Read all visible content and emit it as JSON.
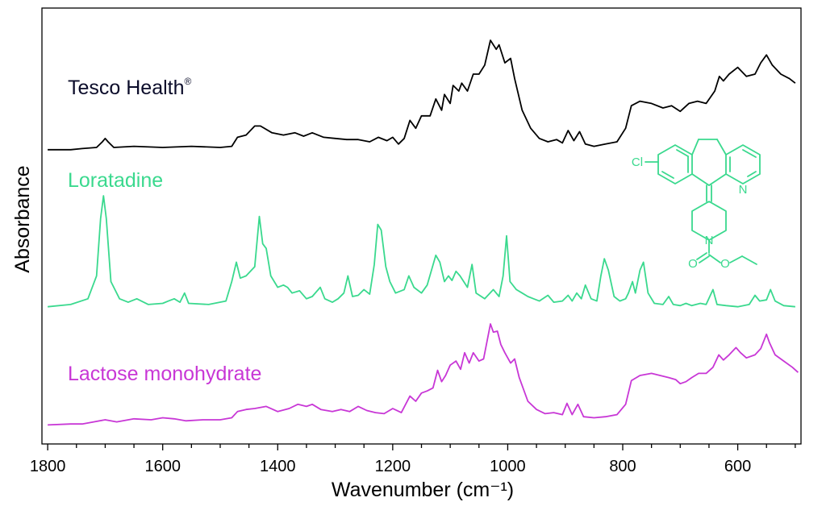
{
  "chart_data": {
    "type": "line",
    "xlabel": "Wavenumber (cm⁻¹)",
    "ylabel": "Absorbance",
    "xlim": [
      1810,
      490
    ],
    "x_reversed": true,
    "x_ticks": [
      1800,
      1600,
      1400,
      1200,
      1000,
      800,
      600
    ],
    "y_ticks": [],
    "grid": false,
    "series": [
      {
        "name": "Tesco Health",
        "name_superscript": "®",
        "color": "#000000",
        "points": [
          [
            1800,
            0.03
          ],
          [
            1760,
            0.03
          ],
          [
            1740,
            0.04
          ],
          [
            1715,
            0.05
          ],
          [
            1705,
            0.1
          ],
          [
            1700,
            0.13
          ],
          [
            1695,
            0.1
          ],
          [
            1685,
            0.05
          ],
          [
            1650,
            0.06
          ],
          [
            1600,
            0.05
          ],
          [
            1550,
            0.06
          ],
          [
            1500,
            0.05
          ],
          [
            1480,
            0.06
          ],
          [
            1470,
            0.14
          ],
          [
            1455,
            0.16
          ],
          [
            1440,
            0.24
          ],
          [
            1430,
            0.24
          ],
          [
            1410,
            0.18
          ],
          [
            1390,
            0.16
          ],
          [
            1370,
            0.18
          ],
          [
            1355,
            0.15
          ],
          [
            1340,
            0.18
          ],
          [
            1320,
            0.14
          ],
          [
            1300,
            0.13
          ],
          [
            1280,
            0.12
          ],
          [
            1260,
            0.12
          ],
          [
            1240,
            0.1
          ],
          [
            1225,
            0.14
          ],
          [
            1210,
            0.11
          ],
          [
            1200,
            0.14
          ],
          [
            1190,
            0.08
          ],
          [
            1180,
            0.13
          ],
          [
            1170,
            0.29
          ],
          [
            1160,
            0.22
          ],
          [
            1150,
            0.33
          ],
          [
            1135,
            0.33
          ],
          [
            1125,
            0.48
          ],
          [
            1115,
            0.38
          ],
          [
            1110,
            0.52
          ],
          [
            1100,
            0.44
          ],
          [
            1095,
            0.6
          ],
          [
            1085,
            0.55
          ],
          [
            1080,
            0.62
          ],
          [
            1070,
            0.55
          ],
          [
            1060,
            0.7
          ],
          [
            1050,
            0.7
          ],
          [
            1040,
            0.78
          ],
          [
            1030,
            1.0
          ],
          [
            1020,
            0.92
          ],
          [
            1015,
            0.96
          ],
          [
            1005,
            0.8
          ],
          [
            995,
            0.84
          ],
          [
            988,
            0.66
          ],
          [
            975,
            0.38
          ],
          [
            960,
            0.22
          ],
          [
            945,
            0.13
          ],
          [
            930,
            0.1
          ],
          [
            915,
            0.12
          ],
          [
            905,
            0.09
          ],
          [
            895,
            0.2
          ],
          [
            885,
            0.11
          ],
          [
            875,
            0.19
          ],
          [
            865,
            0.08
          ],
          [
            850,
            0.06
          ],
          [
            830,
            0.08
          ],
          [
            810,
            0.1
          ],
          [
            795,
            0.22
          ],
          [
            785,
            0.42
          ],
          [
            770,
            0.46
          ],
          [
            750,
            0.44
          ],
          [
            730,
            0.4
          ],
          [
            715,
            0.42
          ],
          [
            700,
            0.37
          ],
          [
            685,
            0.44
          ],
          [
            670,
            0.46
          ],
          [
            655,
            0.44
          ],
          [
            640,
            0.55
          ],
          [
            632,
            0.68
          ],
          [
            625,
            0.64
          ],
          [
            615,
            0.7
          ],
          [
            600,
            0.76
          ],
          [
            585,
            0.68
          ],
          [
            570,
            0.7
          ],
          [
            560,
            0.8
          ],
          [
            550,
            0.87
          ],
          [
            540,
            0.78
          ],
          [
            525,
            0.7
          ],
          [
            510,
            0.66
          ],
          [
            500,
            0.62
          ]
        ]
      },
      {
        "name": "Loratadine",
        "color": "#3ad98e",
        "points": [
          [
            1800,
            0.03
          ],
          [
            1760,
            0.05
          ],
          [
            1730,
            0.1
          ],
          [
            1715,
            0.3
          ],
          [
            1708,
            0.8
          ],
          [
            1703,
            1.0
          ],
          [
            1698,
            0.8
          ],
          [
            1690,
            0.25
          ],
          [
            1675,
            0.1
          ],
          [
            1660,
            0.07
          ],
          [
            1645,
            0.1
          ],
          [
            1625,
            0.05
          ],
          [
            1600,
            0.06
          ],
          [
            1590,
            0.08
          ],
          [
            1580,
            0.1
          ],
          [
            1570,
            0.07
          ],
          [
            1562,
            0.15
          ],
          [
            1555,
            0.06
          ],
          [
            1520,
            0.05
          ],
          [
            1490,
            0.08
          ],
          [
            1480,
            0.25
          ],
          [
            1472,
            0.42
          ],
          [
            1465,
            0.28
          ],
          [
            1455,
            0.3
          ],
          [
            1440,
            0.38
          ],
          [
            1432,
            0.82
          ],
          [
            1426,
            0.58
          ],
          [
            1420,
            0.54
          ],
          [
            1412,
            0.3
          ],
          [
            1400,
            0.2
          ],
          [
            1390,
            0.22
          ],
          [
            1383,
            0.2
          ],
          [
            1375,
            0.15
          ],
          [
            1362,
            0.17
          ],
          [
            1350,
            0.1
          ],
          [
            1340,
            0.12
          ],
          [
            1326,
            0.2
          ],
          [
            1318,
            0.1
          ],
          [
            1305,
            0.07
          ],
          [
            1295,
            0.1
          ],
          [
            1285,
            0.15
          ],
          [
            1278,
            0.3
          ],
          [
            1270,
            0.12
          ],
          [
            1260,
            0.13
          ],
          [
            1250,
            0.18
          ],
          [
            1240,
            0.14
          ],
          [
            1232,
            0.4
          ],
          [
            1226,
            0.75
          ],
          [
            1220,
            0.7
          ],
          [
            1212,
            0.38
          ],
          [
            1205,
            0.25
          ],
          [
            1195,
            0.15
          ],
          [
            1180,
            0.18
          ],
          [
            1172,
            0.3
          ],
          [
            1163,
            0.2
          ],
          [
            1150,
            0.15
          ],
          [
            1140,
            0.22
          ],
          [
            1125,
            0.48
          ],
          [
            1118,
            0.42
          ],
          [
            1110,
            0.25
          ],
          [
            1103,
            0.3
          ],
          [
            1097,
            0.26
          ],
          [
            1090,
            0.34
          ],
          [
            1083,
            0.3
          ],
          [
            1070,
            0.2
          ],
          [
            1062,
            0.4
          ],
          [
            1055,
            0.15
          ],
          [
            1040,
            0.1
          ],
          [
            1025,
            0.18
          ],
          [
            1015,
            0.12
          ],
          [
            1008,
            0.3
          ],
          [
            1002,
            0.65
          ],
          [
            996,
            0.25
          ],
          [
            985,
            0.18
          ],
          [
            975,
            0.15
          ],
          [
            965,
            0.12
          ],
          [
            955,
            0.1
          ],
          [
            945,
            0.08
          ],
          [
            930,
            0.13
          ],
          [
            920,
            0.07
          ],
          [
            905,
            0.08
          ],
          [
            895,
            0.13
          ],
          [
            888,
            0.08
          ],
          [
            880,
            0.15
          ],
          [
            872,
            0.1
          ],
          [
            865,
            0.22
          ],
          [
            855,
            0.1
          ],
          [
            845,
            0.08
          ],
          [
            838,
            0.3
          ],
          [
            832,
            0.45
          ],
          [
            825,
            0.35
          ],
          [
            815,
            0.12
          ],
          [
            805,
            0.08
          ],
          [
            795,
            0.1
          ],
          [
            790,
            0.15
          ],
          [
            783,
            0.25
          ],
          [
            778,
            0.15
          ],
          [
            770,
            0.35
          ],
          [
            764,
            0.42
          ],
          [
            756,
            0.15
          ],
          [
            745,
            0.06
          ],
          [
            730,
            0.05
          ],
          [
            720,
            0.12
          ],
          [
            712,
            0.05
          ],
          [
            700,
            0.04
          ],
          [
            690,
            0.06
          ],
          [
            680,
            0.04
          ],
          [
            665,
            0.06
          ],
          [
            655,
            0.05
          ],
          [
            643,
            0.18
          ],
          [
            636,
            0.05
          ],
          [
            620,
            0.04
          ],
          [
            600,
            0.03
          ],
          [
            580,
            0.05
          ],
          [
            570,
            0.13
          ],
          [
            562,
            0.08
          ],
          [
            550,
            0.09
          ],
          [
            543,
            0.18
          ],
          [
            535,
            0.08
          ],
          [
            520,
            0.04
          ],
          [
            500,
            0.03
          ]
        ]
      },
      {
        "name": "Lactose monohydrate",
        "color": "#c837d6",
        "points": [
          [
            1800,
            0.02
          ],
          [
            1760,
            0.03
          ],
          [
            1740,
            0.03
          ],
          [
            1720,
            0.05
          ],
          [
            1700,
            0.07
          ],
          [
            1680,
            0.05
          ],
          [
            1650,
            0.08
          ],
          [
            1620,
            0.07
          ],
          [
            1600,
            0.09
          ],
          [
            1580,
            0.08
          ],
          [
            1560,
            0.06
          ],
          [
            1530,
            0.07
          ],
          [
            1500,
            0.07
          ],
          [
            1480,
            0.09
          ],
          [
            1470,
            0.15
          ],
          [
            1455,
            0.17
          ],
          [
            1440,
            0.18
          ],
          [
            1420,
            0.2
          ],
          [
            1400,
            0.15
          ],
          [
            1380,
            0.18
          ],
          [
            1365,
            0.22
          ],
          [
            1350,
            0.2
          ],
          [
            1340,
            0.22
          ],
          [
            1325,
            0.17
          ],
          [
            1305,
            0.15
          ],
          [
            1290,
            0.17
          ],
          [
            1275,
            0.15
          ],
          [
            1260,
            0.2
          ],
          [
            1245,
            0.16
          ],
          [
            1230,
            0.14
          ],
          [
            1215,
            0.13
          ],
          [
            1200,
            0.18
          ],
          [
            1185,
            0.14
          ],
          [
            1170,
            0.3
          ],
          [
            1160,
            0.25
          ],
          [
            1150,
            0.33
          ],
          [
            1140,
            0.35
          ],
          [
            1130,
            0.38
          ],
          [
            1122,
            0.55
          ],
          [
            1115,
            0.44
          ],
          [
            1108,
            0.5
          ],
          [
            1100,
            0.6
          ],
          [
            1090,
            0.64
          ],
          [
            1082,
            0.56
          ],
          [
            1075,
            0.72
          ],
          [
            1067,
            0.62
          ],
          [
            1060,
            0.72
          ],
          [
            1050,
            0.64
          ],
          [
            1042,
            0.66
          ],
          [
            1030,
            1.0
          ],
          [
            1025,
            0.92
          ],
          [
            1018,
            0.93
          ],
          [
            1012,
            0.8
          ],
          [
            1005,
            0.72
          ],
          [
            995,
            0.62
          ],
          [
            988,
            0.66
          ],
          [
            980,
            0.48
          ],
          [
            965,
            0.25
          ],
          [
            950,
            0.17
          ],
          [
            935,
            0.13
          ],
          [
            920,
            0.14
          ],
          [
            905,
            0.12
          ],
          [
            897,
            0.23
          ],
          [
            888,
            0.12
          ],
          [
            878,
            0.22
          ],
          [
            868,
            0.1
          ],
          [
            850,
            0.09
          ],
          [
            830,
            0.1
          ],
          [
            810,
            0.12
          ],
          [
            795,
            0.22
          ],
          [
            785,
            0.45
          ],
          [
            770,
            0.5
          ],
          [
            750,
            0.52
          ],
          [
            735,
            0.5
          ],
          [
            720,
            0.48
          ],
          [
            708,
            0.46
          ],
          [
            700,
            0.42
          ],
          [
            690,
            0.44
          ],
          [
            680,
            0.48
          ],
          [
            668,
            0.52
          ],
          [
            655,
            0.52
          ],
          [
            643,
            0.58
          ],
          [
            633,
            0.7
          ],
          [
            625,
            0.65
          ],
          [
            615,
            0.7
          ],
          [
            603,
            0.77
          ],
          [
            595,
            0.72
          ],
          [
            585,
            0.67
          ],
          [
            570,
            0.7
          ],
          [
            560,
            0.76
          ],
          [
            550,
            0.9
          ],
          [
            545,
            0.82
          ],
          [
            535,
            0.7
          ],
          [
            520,
            0.64
          ],
          [
            505,
            0.58
          ],
          [
            495,
            0.53
          ]
        ]
      }
    ],
    "structure": {
      "name": "Loratadine",
      "atom_labels": [
        "Cl",
        "N",
        "N",
        "O",
        "O"
      ],
      "color": "#3ad98e"
    }
  }
}
